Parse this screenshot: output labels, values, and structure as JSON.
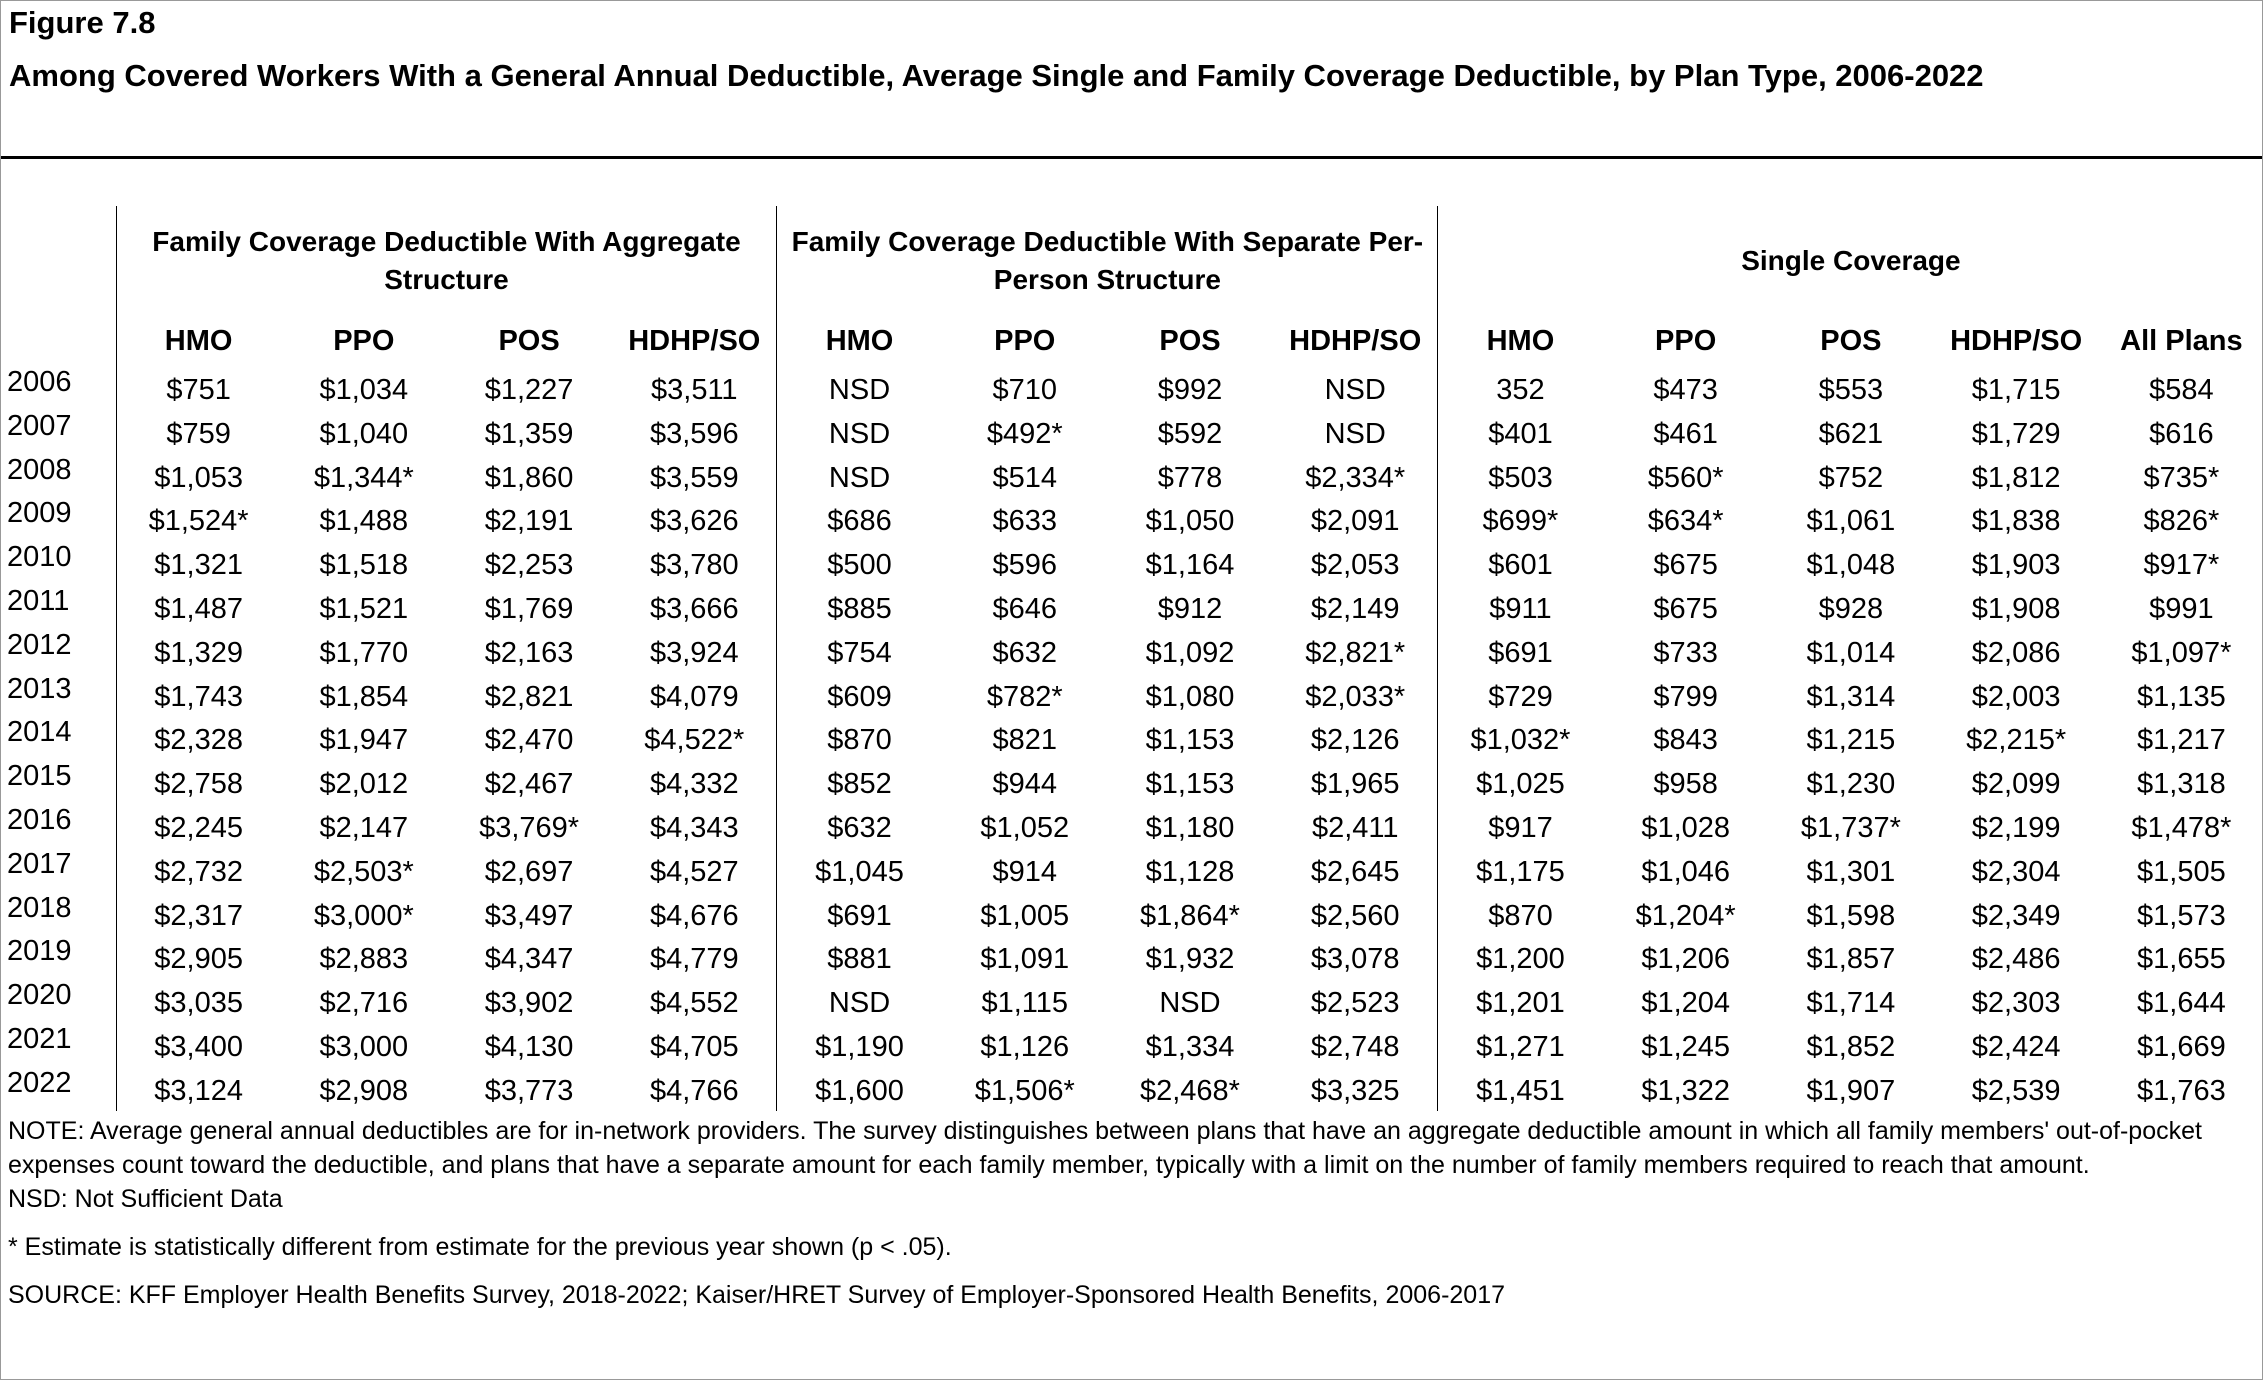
{
  "figure": "Figure 7.8",
  "title": "Among Covered Workers With a General Annual Deductible, Average Single and Family Coverage Deductible, by Plan Type, 2006-2022",
  "groups": [
    {
      "label": "Family Coverage Deductible With Aggregate Structure",
      "span": 4
    },
    {
      "label": "Family Coverage Deductible With Separate Per-Person Structure",
      "span": 4
    },
    {
      "label": "Single Coverage",
      "span": 5
    }
  ],
  "columns": [
    "HMO",
    "PPO",
    "POS",
    "HDHP/SO",
    "HMO",
    "PPO",
    "POS",
    "HDHP/SO",
    "HMO",
    "PPO",
    "POS",
    "HDHP/SO",
    "All Plans"
  ],
  "rows": [
    {
      "year": "2006",
      "cells": [
        "$751",
        "$1,034",
        "$1,227",
        "$3,511",
        "NSD",
        "$710",
        "$992",
        "NSD",
        "352",
        "$473",
        "$553",
        "$1,715",
        "$584"
      ]
    },
    {
      "year": "2007",
      "cells": [
        "$759",
        "$1,040",
        "$1,359",
        "$3,596",
        "NSD",
        "$492*",
        "$592",
        "NSD",
        "$401",
        "$461",
        "$621",
        "$1,729",
        "$616"
      ]
    },
    {
      "year": "2008",
      "cells": [
        "$1,053",
        "$1,344*",
        "$1,860",
        "$3,559",
        "NSD",
        "$514",
        "$778",
        "$2,334*",
        "$503",
        "$560*",
        "$752",
        "$1,812",
        "$735*"
      ]
    },
    {
      "year": "2009",
      "cells": [
        "$1,524*",
        "$1,488",
        "$2,191",
        "$3,626",
        "$686",
        "$633",
        "$1,050",
        "$2,091",
        "$699*",
        "$634*",
        "$1,061",
        "$1,838",
        "$826*"
      ]
    },
    {
      "year": "2010",
      "cells": [
        "$1,321",
        "$1,518",
        "$2,253",
        "$3,780",
        "$500",
        "$596",
        "$1,164",
        "$2,053",
        "$601",
        "$675",
        "$1,048",
        "$1,903",
        "$917*"
      ]
    },
    {
      "year": "2011",
      "cells": [
        "$1,487",
        "$1,521",
        "$1,769",
        "$3,666",
        "$885",
        "$646",
        "$912",
        "$2,149",
        "$911",
        "$675",
        "$928",
        "$1,908",
        "$991"
      ]
    },
    {
      "year": "2012",
      "cells": [
        "$1,329",
        "$1,770",
        "$2,163",
        "$3,924",
        "$754",
        "$632",
        "$1,092",
        "$2,821*",
        "$691",
        "$733",
        "$1,014",
        "$2,086",
        "$1,097*"
      ]
    },
    {
      "year": "2013",
      "cells": [
        "$1,743",
        "$1,854",
        "$2,821",
        "$4,079",
        "$609",
        "$782*",
        "$1,080",
        "$2,033*",
        "$729",
        "$799",
        "$1,314",
        "$2,003",
        "$1,135"
      ]
    },
    {
      "year": "2014",
      "cells": [
        "$2,328",
        "$1,947",
        "$2,470",
        "$4,522*",
        "$870",
        "$821",
        "$1,153",
        "$2,126",
        "$1,032*",
        "$843",
        "$1,215",
        "$2,215*",
        "$1,217"
      ]
    },
    {
      "year": "2015",
      "cells": [
        "$2,758",
        "$2,012",
        "$2,467",
        "$4,332",
        "$852",
        "$944",
        "$1,153",
        "$1,965",
        "$1,025",
        "$958",
        "$1,230",
        "$2,099",
        "$1,318"
      ]
    },
    {
      "year": "2016",
      "cells": [
        "$2,245",
        "$2,147",
        "$3,769*",
        "$4,343",
        "$632",
        "$1,052",
        "$1,180",
        "$2,411",
        "$917",
        "$1,028",
        "$1,737*",
        "$2,199",
        "$1,478*"
      ]
    },
    {
      "year": "2017",
      "cells": [
        "$2,732",
        "$2,503*",
        "$2,697",
        "$4,527",
        "$1,045",
        "$914",
        "$1,128",
        "$2,645",
        "$1,175",
        "$1,046",
        "$1,301",
        "$2,304",
        "$1,505"
      ]
    },
    {
      "year": "2018",
      "cells": [
        "$2,317",
        "$3,000*",
        "$3,497",
        "$4,676",
        "$691",
        "$1,005",
        "$1,864*",
        "$2,560",
        "$870",
        "$1,204*",
        "$1,598",
        "$2,349",
        "$1,573"
      ]
    },
    {
      "year": "2019",
      "cells": [
        "$2,905",
        "$2,883",
        "$4,347",
        "$4,779",
        "$881",
        "$1,091",
        "$1,932",
        "$3,078",
        "$1,200",
        "$1,206",
        "$1,857",
        "$2,486",
        "$1,655"
      ]
    },
    {
      "year": "2020",
      "cells": [
        "$3,035",
        "$2,716",
        "$3,902",
        "$4,552",
        "NSD",
        "$1,115",
        "NSD",
        "$2,523",
        "$1,201",
        "$1,204",
        "$1,714",
        "$2,303",
        "$1,644"
      ]
    },
    {
      "year": "2021",
      "cells": [
        "$3,400",
        "$3,000",
        "$4,130",
        "$4,705",
        "$1,190",
        "$1,126",
        "$1,334",
        "$2,748",
        "$1,271",
        "$1,245",
        "$1,852",
        "$2,424",
        "$1,669"
      ]
    },
    {
      "year": "2022",
      "cells": [
        "$3,124",
        "$2,908",
        "$3,773",
        "$4,766",
        "$1,600",
        "$1,506*",
        "$2,468*",
        "$3,325",
        "$1,451",
        "$1,322",
        "$1,907",
        "$2,539",
        "$1,763"
      ]
    }
  ],
  "notes": [
    "NOTE: Average general annual deductibles are for in-network providers. The survey distinguishes between plans that have an aggregate deductible amount in which all family members' out-of-pocket expenses count toward the deductible, and plans that have a separate amount for each family member, typically with a limit on the number of family members required to reach that amount.",
    "NSD: Not Sufficient Data",
    "* Estimate is statistically different from estimate for the previous year shown (p < .05).",
    "SOURCE: KFF Employer Health Benefits Survey, 2018-2022; Kaiser/HRET Survey of Employer-Sponsored Health Benefits, 2006-2017"
  ]
}
